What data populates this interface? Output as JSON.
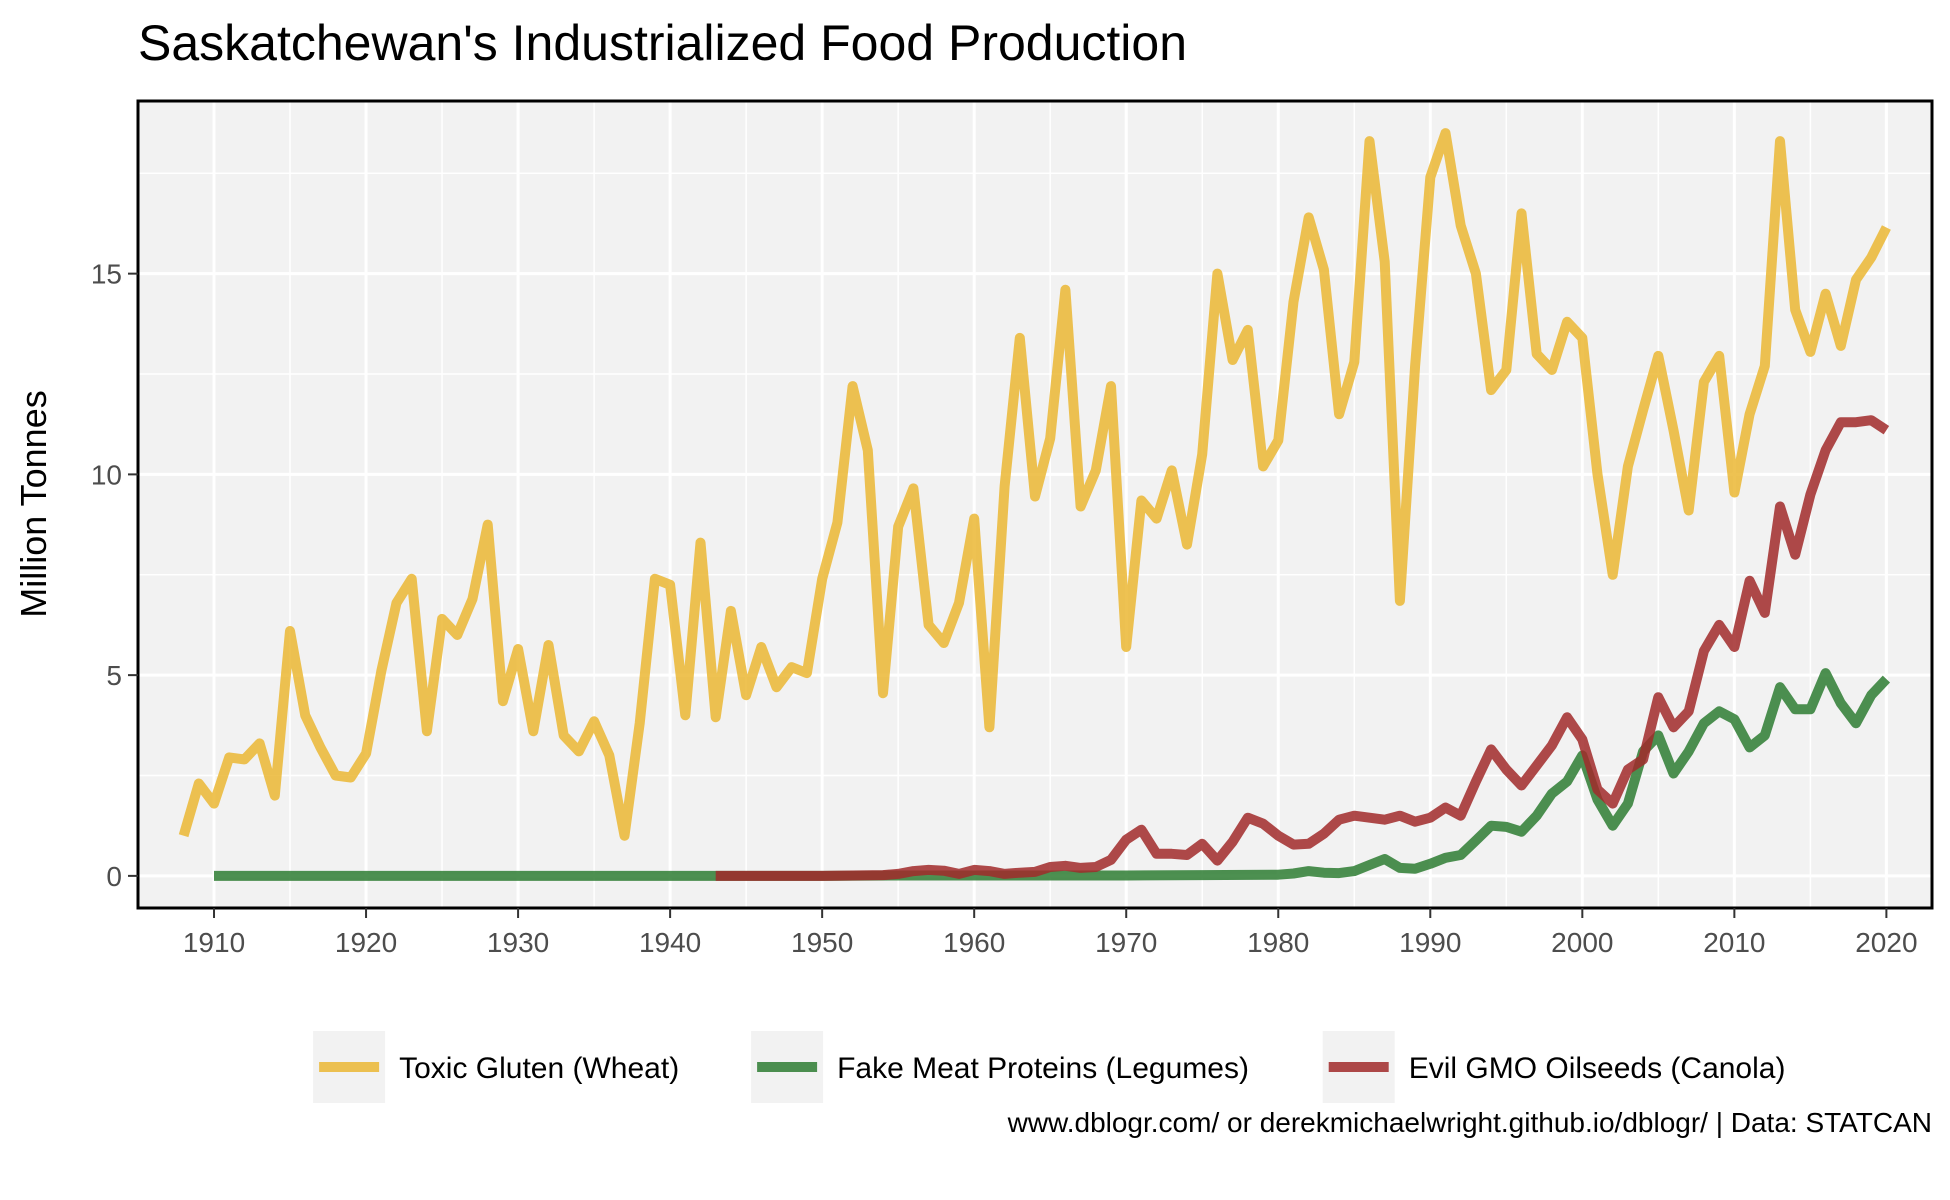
{
  "chart_data": {
    "type": "line",
    "title": "Saskatchewan's Industrialized Food Production",
    "xlabel": "",
    "ylabel": "Million Tonnes",
    "xlim": [
      1905,
      2023
    ],
    "ylim": [
      -0.8,
      19.3
    ],
    "x_ticks": [
      1910,
      1920,
      1930,
      1940,
      1950,
      1960,
      1970,
      1980,
      1990,
      2000,
      2010,
      2020
    ],
    "y_ticks": [
      0,
      5,
      10,
      15
    ],
    "grid": true,
    "legend_position": "bottom",
    "caption": "www.dblogr.com/ or derekmichaelwright.github.io/dblogr/ | Data: STATCAN",
    "series": [
      {
        "name": "Toxic Gluten (Wheat)",
        "color": "#ebb734",
        "x": [
          1908,
          1909,
          1910,
          1911,
          1912,
          1913,
          1914,
          1915,
          1916,
          1917,
          1918,
          1919,
          1920,
          1921,
          1922,
          1923,
          1924,
          1925,
          1926,
          1927,
          1928,
          1929,
          1930,
          1931,
          1932,
          1933,
          1934,
          1935,
          1936,
          1937,
          1938,
          1939,
          1940,
          1941,
          1942,
          1943,
          1944,
          1945,
          1946,
          1947,
          1948,
          1949,
          1950,
          1951,
          1952,
          1953,
          1954,
          1955,
          1956,
          1957,
          1958,
          1959,
          1960,
          1961,
          1962,
          1963,
          1964,
          1965,
          1966,
          1967,
          1968,
          1969,
          1970,
          1971,
          1972,
          1973,
          1974,
          1975,
          1976,
          1977,
          1978,
          1979,
          1980,
          1981,
          1982,
          1983,
          1984,
          1985,
          1986,
          1987,
          1988,
          1989,
          1990,
          1991,
          1992,
          1993,
          1994,
          1995,
          1996,
          1997,
          1998,
          1999,
          2000,
          2001,
          2002,
          2003,
          2004,
          2005,
          2006,
          2007,
          2008,
          2009,
          2010,
          2011,
          2012,
          2013,
          2014,
          2015,
          2016,
          2017,
          2018,
          2019,
          2020
        ],
        "values": [
          1.0,
          2.3,
          1.8,
          2.95,
          2.9,
          3.3,
          2.0,
          6.1,
          4.0,
          3.2,
          2.5,
          2.45,
          3.05,
          5.1,
          6.8,
          7.4,
          3.6,
          6.4,
          6.0,
          6.9,
          8.75,
          4.35,
          5.65,
          3.6,
          5.75,
          3.5,
          3.1,
          3.85,
          3.0,
          1.0,
          3.8,
          7.4,
          7.25,
          4.0,
          8.3,
          3.95,
          6.6,
          4.5,
          5.7,
          4.7,
          5.2,
          5.05,
          7.4,
          8.8,
          12.2,
          10.6,
          4.55,
          8.7,
          9.65,
          6.25,
          5.8,
          6.8,
          8.9,
          3.7,
          9.7,
          13.4,
          9.45,
          10.9,
          14.6,
          9.2,
          10.1,
          12.2,
          5.7,
          9.35,
          8.9,
          10.1,
          8.25,
          10.5,
          15.0,
          12.85,
          13.6,
          10.2,
          10.85,
          14.3,
          16.4,
          15.1,
          11.5,
          12.8,
          18.3,
          15.3,
          6.85,
          12.7,
          17.4,
          18.5,
          16.2,
          15.0,
          12.1,
          12.6,
          16.5,
          13.0,
          12.6,
          13.8,
          13.4,
          10.0,
          7.5,
          10.2,
          11.6,
          12.95,
          11.1,
          9.1,
          12.3,
          12.95,
          9.55,
          11.5,
          12.7,
          18.3,
          14.1,
          13.05,
          14.5,
          13.2,
          14.85,
          15.4,
          16.15
        ]
      },
      {
        "name": "Fake Meat Proteins (Legumes)",
        "color": "#2e7d32",
        "x": [
          1910,
          1920,
          1930,
          1940,
          1950,
          1955,
          1960,
          1965,
          1970,
          1975,
          1980,
          1981,
          1982,
          1983,
          1984,
          1985,
          1986,
          1987,
          1988,
          1989,
          1990,
          1991,
          1992,
          1993,
          1994,
          1995,
          1996,
          1997,
          1998,
          1999,
          2000,
          2001,
          2002,
          2003,
          2004,
          2005,
          2006,
          2007,
          2008,
          2009,
          2010,
          2011,
          2012,
          2013,
          2014,
          2015,
          2016,
          2017,
          2018,
          2019,
          2020
        ],
        "values": [
          0.0,
          0.0,
          0.0,
          0.0,
          0.0,
          0.01,
          0.01,
          0.01,
          0.01,
          0.02,
          0.03,
          0.06,
          0.12,
          0.08,
          0.07,
          0.12,
          0.27,
          0.42,
          0.2,
          0.18,
          0.3,
          0.45,
          0.52,
          0.88,
          1.25,
          1.22,
          1.1,
          1.5,
          2.05,
          2.35,
          3.0,
          1.9,
          1.25,
          1.8,
          3.1,
          3.5,
          2.55,
          3.1,
          3.8,
          4.1,
          3.9,
          3.2,
          3.5,
          4.7,
          4.15,
          4.15,
          5.05,
          4.3,
          3.8,
          4.5,
          4.9
        ]
      },
      {
        "name": "Evil GMO Oilseeds (Canola)",
        "color": "#a12a2a",
        "x": [
          1943,
          1950,
          1954,
          1955,
          1956,
          1957,
          1958,
          1959,
          1960,
          1961,
          1962,
          1963,
          1964,
          1965,
          1966,
          1967,
          1968,
          1969,
          1970,
          1971,
          1972,
          1973,
          1974,
          1975,
          1976,
          1977,
          1978,
          1979,
          1980,
          1981,
          1982,
          1983,
          1984,
          1985,
          1986,
          1987,
          1988,
          1989,
          1990,
          1991,
          1992,
          1993,
          1994,
          1995,
          1996,
          1997,
          1998,
          1999,
          2000,
          2001,
          2002,
          2003,
          2004,
          2005,
          2006,
          2007,
          2008,
          2009,
          2010,
          2011,
          2012,
          2013,
          2014,
          2015,
          2016,
          2017,
          2018,
          2019,
          2020
        ],
        "values": [
          0.0,
          0.0,
          0.02,
          0.05,
          0.12,
          0.15,
          0.13,
          0.05,
          0.15,
          0.12,
          0.05,
          0.08,
          0.1,
          0.22,
          0.25,
          0.2,
          0.22,
          0.4,
          0.9,
          1.15,
          0.55,
          0.55,
          0.52,
          0.8,
          0.38,
          0.85,
          1.45,
          1.3,
          1.0,
          0.78,
          0.8,
          1.05,
          1.4,
          1.5,
          1.45,
          1.4,
          1.5,
          1.35,
          1.45,
          1.7,
          1.5,
          2.35,
          3.15,
          2.65,
          2.25,
          2.75,
          3.25,
          3.95,
          3.4,
          2.15,
          1.8,
          2.65,
          2.9,
          4.45,
          3.7,
          4.1,
          5.6,
          6.25,
          5.7,
          7.35,
          6.55,
          9.2,
          8.0,
          9.5,
          10.6,
          11.3,
          11.3,
          11.35,
          11.1
        ]
      }
    ]
  }
}
